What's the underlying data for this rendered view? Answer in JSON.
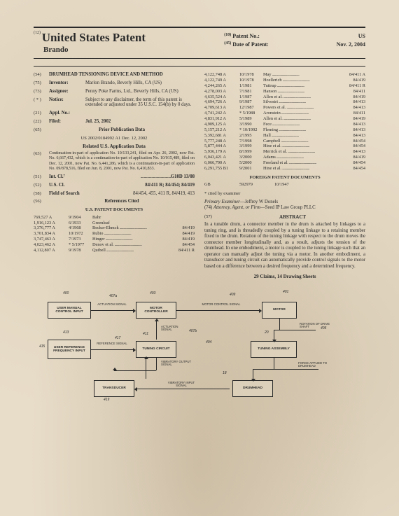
{
  "header": {
    "num12": "(12)",
    "title": "United States Patent",
    "applicant": "Brando",
    "num10": "(10)",
    "patent_no_label": "Patent No.:",
    "patent_no_val": "US",
    "num45": "(45)",
    "date_label": "Date of Patent:",
    "date_val": "Nov. 2, 2004"
  },
  "left": {
    "e54": {
      "n": "(54)",
      "l": "",
      "v": "DRUMHEAD TENSIONING DEVICE AND METHOD"
    },
    "e75": {
      "n": "(75)",
      "l": "Inventor:",
      "v": "Marlon Brando, Beverly Hills, CA (US)"
    },
    "e73": {
      "n": "(73)",
      "l": "Assignee:",
      "v": "Penny Poke Farms, Ltd., Beverly Hills, CA (US)"
    },
    "eStar": {
      "n": "( * )",
      "l": "Notice:",
      "v": "Subject to any disclaimer, the term of this patent is extended or adjusted under 35 U.S.C. 154(b) by 0 days."
    },
    "e21": {
      "n": "(21)",
      "l": "Appl. No.:",
      "v": ""
    },
    "e22": {
      "n": "(22)",
      "l": "Filed:",
      "v": "Jul. 25, 2002"
    },
    "e65": {
      "n": "(65)",
      "l": "",
      "v": "Prior Publication Data"
    },
    "pub": "US 2002/0184992 A1 Dec. 12, 2002",
    "related_title": "Related U.S. Application Data",
    "e63": {
      "n": "(63)",
      "v": "Continuation-in-part of application No. 10/133,241, filed on Apr. 26, 2002, now Pat. No. 6,667,432, which is a continuation-in-part of application No. 10/015,489, filed on Dec. 12, 2001, now Pat. No. 6,441,286, which is a continuation-in-part of application No. 09/878,516, filed on Jun. 8, 2001, now Pat. No. 6,410,833."
    },
    "e51": {
      "n": "(51)",
      "l": "Int. Cl.⁷",
      "v": "G10D 13/08"
    },
    "e52": {
      "n": "(52)",
      "l": "U.S. Cl.",
      "v": "84/411 R; 84/454; 84/419"
    },
    "e58": {
      "n": "(58)",
      "l": "Field of Search",
      "v": "84/454, 455, 411 R, 84/419, 413"
    },
    "refs_title": "References Cited",
    "us_docs_title": "U.S. PATENT DOCUMENTS",
    "us_docs": [
      {
        "a": "769,527 A",
        "b": "9/1904",
        "c": "Bahr",
        "d": ""
      },
      {
        "a": "1,916,123 A",
        "b": "6/1933",
        "c": "Greenleaf",
        "d": ""
      },
      {
        "a": "3,376,777 A",
        "b": "4/1968",
        "c": "Becker-Ehmck",
        "d": "84/419"
      },
      {
        "a": "3,701,834 A",
        "b": "10/1972",
        "c": "Rubio",
        "d": "84/419"
      },
      {
        "a": "3,747,463 A",
        "b": "7/1973",
        "c": "Hinger",
        "d": "84/419"
      },
      {
        "a": "4,023,462 A",
        "b": "* 5/1977",
        "c": "Denov et al.",
        "d": "84/454"
      },
      {
        "a": "4,112,807 A",
        "b": "9/1978",
        "c": "Quibell",
        "d": "84/411 R"
      }
    ]
  },
  "right": {
    "more_docs": [
      {
        "a": "4,122,748 A",
        "b": "10/1978",
        "c": "May",
        "d": "84/411 A"
      },
      {
        "a": "4,122,749 A",
        "b": "10/1978",
        "c": "Hoellerich",
        "d": "84/419"
      },
      {
        "a": "4,244,265 A",
        "b": "1/1981",
        "c": "Tuttrup",
        "d": "84/411 R"
      },
      {
        "a": "4,278,003 A",
        "b": "7/1981",
        "c": "Hanson",
        "d": "84/411"
      },
      {
        "a": "4,635,524 A",
        "b": "1/1987",
        "c": "Allen et al.",
        "d": "84/419"
      },
      {
        "a": "4,694,726 A",
        "b": "9/1987",
        "c": "Silvestri",
        "d": "84/413"
      },
      {
        "a": "4,709,613 A",
        "b": "12/1987",
        "c": "Powers et al.",
        "d": "84/413"
      },
      {
        "a": "4,741,242 A",
        "b": "* 5/1988",
        "c": "Aronstein",
        "d": "84/411"
      },
      {
        "a": "4,831,912 A",
        "b": "5/1989",
        "c": "Allen et al.",
        "d": "84/419"
      },
      {
        "a": "4,909,125 A",
        "b": "3/1990",
        "c": "Fece",
        "d": "84/413"
      },
      {
        "a": "5,157,212 A",
        "b": "* 10/1992",
        "c": "Fleming",
        "d": "84/413"
      },
      {
        "a": "5,392,681 A",
        "b": "2/1995",
        "c": "Hall",
        "d": "84/413"
      },
      {
        "a": "5,777,248 A",
        "b": "7/1998",
        "c": "Campbell",
        "d": "84/454"
      },
      {
        "a": "5,877,444 A",
        "b": "3/1999",
        "c": "Hine et al.",
        "d": "84/454"
      },
      {
        "a": "5,936,179 A",
        "b": "8/1999",
        "c": "Merrick et al.",
        "d": "84/413"
      },
      {
        "a": "6,043,421 A",
        "b": "3/2000",
        "c": "Adams",
        "d": "84/419"
      },
      {
        "a": "6,066,790 A",
        "b": "5/2000",
        "c": "Freeland et al.",
        "d": "84/454"
      },
      {
        "a": "6,291,755 B1",
        "b": "9/2001",
        "c": "Hine et al.",
        "d": "84/454"
      }
    ],
    "foreign_title": "FOREIGN PATENT DOCUMENTS",
    "foreign": {
      "a": "GB",
      "b": "592979",
      "c": "10/1947",
      "d": ""
    },
    "cited": "* cited by examiner",
    "examiner_label": "Primary Examiner",
    "examiner": "—Jeffrey W Donels",
    "e74": {
      "n": "(74)",
      "l": "Attorney, Agent, or Firm",
      "v": "—Seed IP Law Group PLLC"
    },
    "abstract_title": "ABSTRACT",
    "e57": "(57)",
    "abstract": "In a tunable drum, a connector member in the drum is attached by linkages to a tuning ring, and is threadedly coupled by a tuning linkage to a retaining member fixed to the drum. Rotation of the tuning linkage with respect to the drum moves the connector member longitudinally and, as a result, adjusts the tension of the drumhead. In one embodiment, a motor is coupled to the tuning linkage such that an operator can manually adjust the tuning via a motor. In another embodiment, a transducer and tuning circuit can automatically provide control signals to the motor based on a difference between a desired frequency and a determined frequency.",
    "claims": "29 Claims, 14 Drawing Sheets"
  },
  "diagram": {
    "labels": {
      "l400": "400",
      "l401": "401",
      "l403": "403",
      "l404": "404",
      "l405": "405",
      "l407a": "407a",
      "l407b": "407b",
      "l409": "409",
      "l411": "411",
      "l413": "413",
      "l415": "415",
      "l417": "417",
      "l419": "419",
      "l20": "20",
      "l18": "18"
    },
    "boxes": {
      "umci": "USER MANUAL CONTROL INPUT",
      "mc": "MOTOR CONTROLLER",
      "motor": "MOTOR",
      "urfi": "USER REFERENCE FREQUENCY INPUT",
      "tc": "TUNING CIRCUIT",
      "ta": "TUNING ASSEMBLY",
      "trans": "TRANSDUCER",
      "dh": "DRUMHEAD"
    },
    "signals": {
      "as1": "ACTUATION SIGNAL",
      "mcs": "MOTOR CONTROL SIGNAL",
      "as2": "ACTUATION SIGNAL",
      "rs": "REFERENCE SIGNAL",
      "rds": "ROTATION OF DRIVE SHAFT",
      "vos": "VIBRATORY OUTPUT SIGNAL",
      "vis": "VIBRATORY INPUT SIGNAL",
      "fad": "FORCE APPLIED TO DRUMHEAD"
    }
  }
}
